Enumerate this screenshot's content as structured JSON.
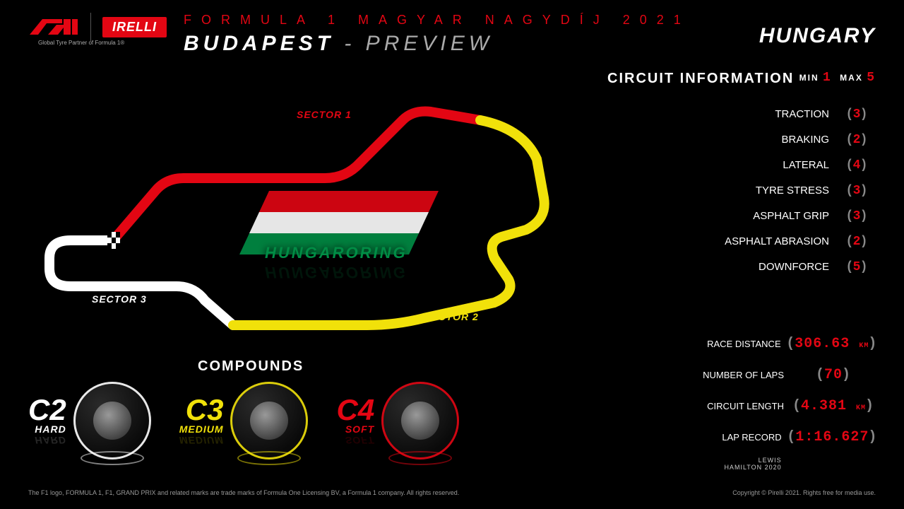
{
  "header": {
    "pirelli": "IRELLI",
    "tagline": "Global Tyre Partner of Formula 1®",
    "line1": "FORMULA 1 MAGYAR NAGYDÍJ 2021",
    "location": "BUDAPEST",
    "preview": "- PREVIEW",
    "country": "HUNGARY"
  },
  "track": {
    "name": "HUNGARORING",
    "sectors": [
      {
        "label": "SECTOR 1",
        "color": "#e30613"
      },
      {
        "label": "SECTOR 2",
        "color": "#f1e10a"
      },
      {
        "label": "SECTOR 3",
        "color": "#ffffff"
      }
    ],
    "flag_colors": [
      "#e30613",
      "#ffffff",
      "#008d45"
    ]
  },
  "circuit_info": {
    "title": "CIRCUIT INFORMATION",
    "legend_min": "MIN",
    "legend_min_val": "1",
    "legend_max": "MAX",
    "legend_max_val": "5",
    "value_color": "#e30613",
    "metrics": [
      {
        "label": "TRACTION",
        "value": "3"
      },
      {
        "label": "BRAKING",
        "value": "2"
      },
      {
        "label": "LATERAL",
        "value": "4"
      },
      {
        "label": "TYRE STRESS",
        "value": "3"
      },
      {
        "label": "ASPHALT GRIP",
        "value": "3"
      },
      {
        "label": "ASPHALT ABRASION",
        "value": "2"
      },
      {
        "label": "DOWNFORCE",
        "value": "5"
      }
    ]
  },
  "stats": [
    {
      "label": "RACE DISTANCE",
      "value": "306.63",
      "unit": "KM"
    },
    {
      "label": "NUMBER OF LAPS",
      "value": "70",
      "unit": ""
    },
    {
      "label": "CIRCUIT LENGTH",
      "value": "4.381",
      "unit": "KM"
    },
    {
      "label": "LAP RECORD",
      "sub": "LEWIS HAMILTON 2020",
      "value": "1:16.627",
      "unit": ""
    }
  ],
  "compounds": {
    "title": "COMPOUNDS",
    "items": [
      {
        "code": "C2",
        "name": "HARD",
        "color": "#ffffff"
      },
      {
        "code": "C3",
        "name": "MEDIUM",
        "color": "#f1e10a"
      },
      {
        "code": "C4",
        "name": "SOFT",
        "color": "#e30613"
      }
    ]
  },
  "footer": {
    "left": "The F1 logo, FORMULA 1, F1, GRAND PRIX and related marks are trade marks of Formula One Licensing BV, a Formula 1 company. All rights reserved.",
    "right": "Copyright © Pirelli 2021. Rights free for media use."
  }
}
